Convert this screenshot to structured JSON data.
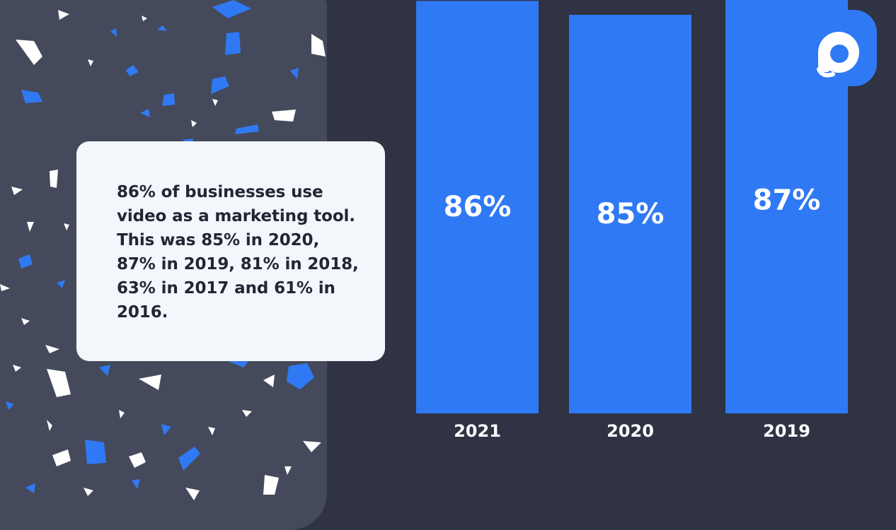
{
  "card": {
    "text": "86% of businesses use video as a marketing tool. This was 85% in 2020, 87% in 2019, 81% in 2018, 63% in 2017 and 61% in 2016."
  },
  "colors": {
    "background": "#2f3344",
    "panel": "#444a5b",
    "bar": "#3079f4",
    "card": "#f3f6fb",
    "text": "#222634"
  },
  "icons": {
    "logo": "brand-logo-icon"
  },
  "chart_data": {
    "type": "bar",
    "categories": [
      "2021",
      "2020",
      "2019"
    ],
    "values": [
      86,
      85,
      87
    ],
    "data_labels": [
      "86%",
      "85%",
      "87%"
    ],
    "title": "",
    "xlabel": "",
    "ylabel": "",
    "ylim": [
      0,
      100
    ],
    "grid": false,
    "legend": "none"
  }
}
